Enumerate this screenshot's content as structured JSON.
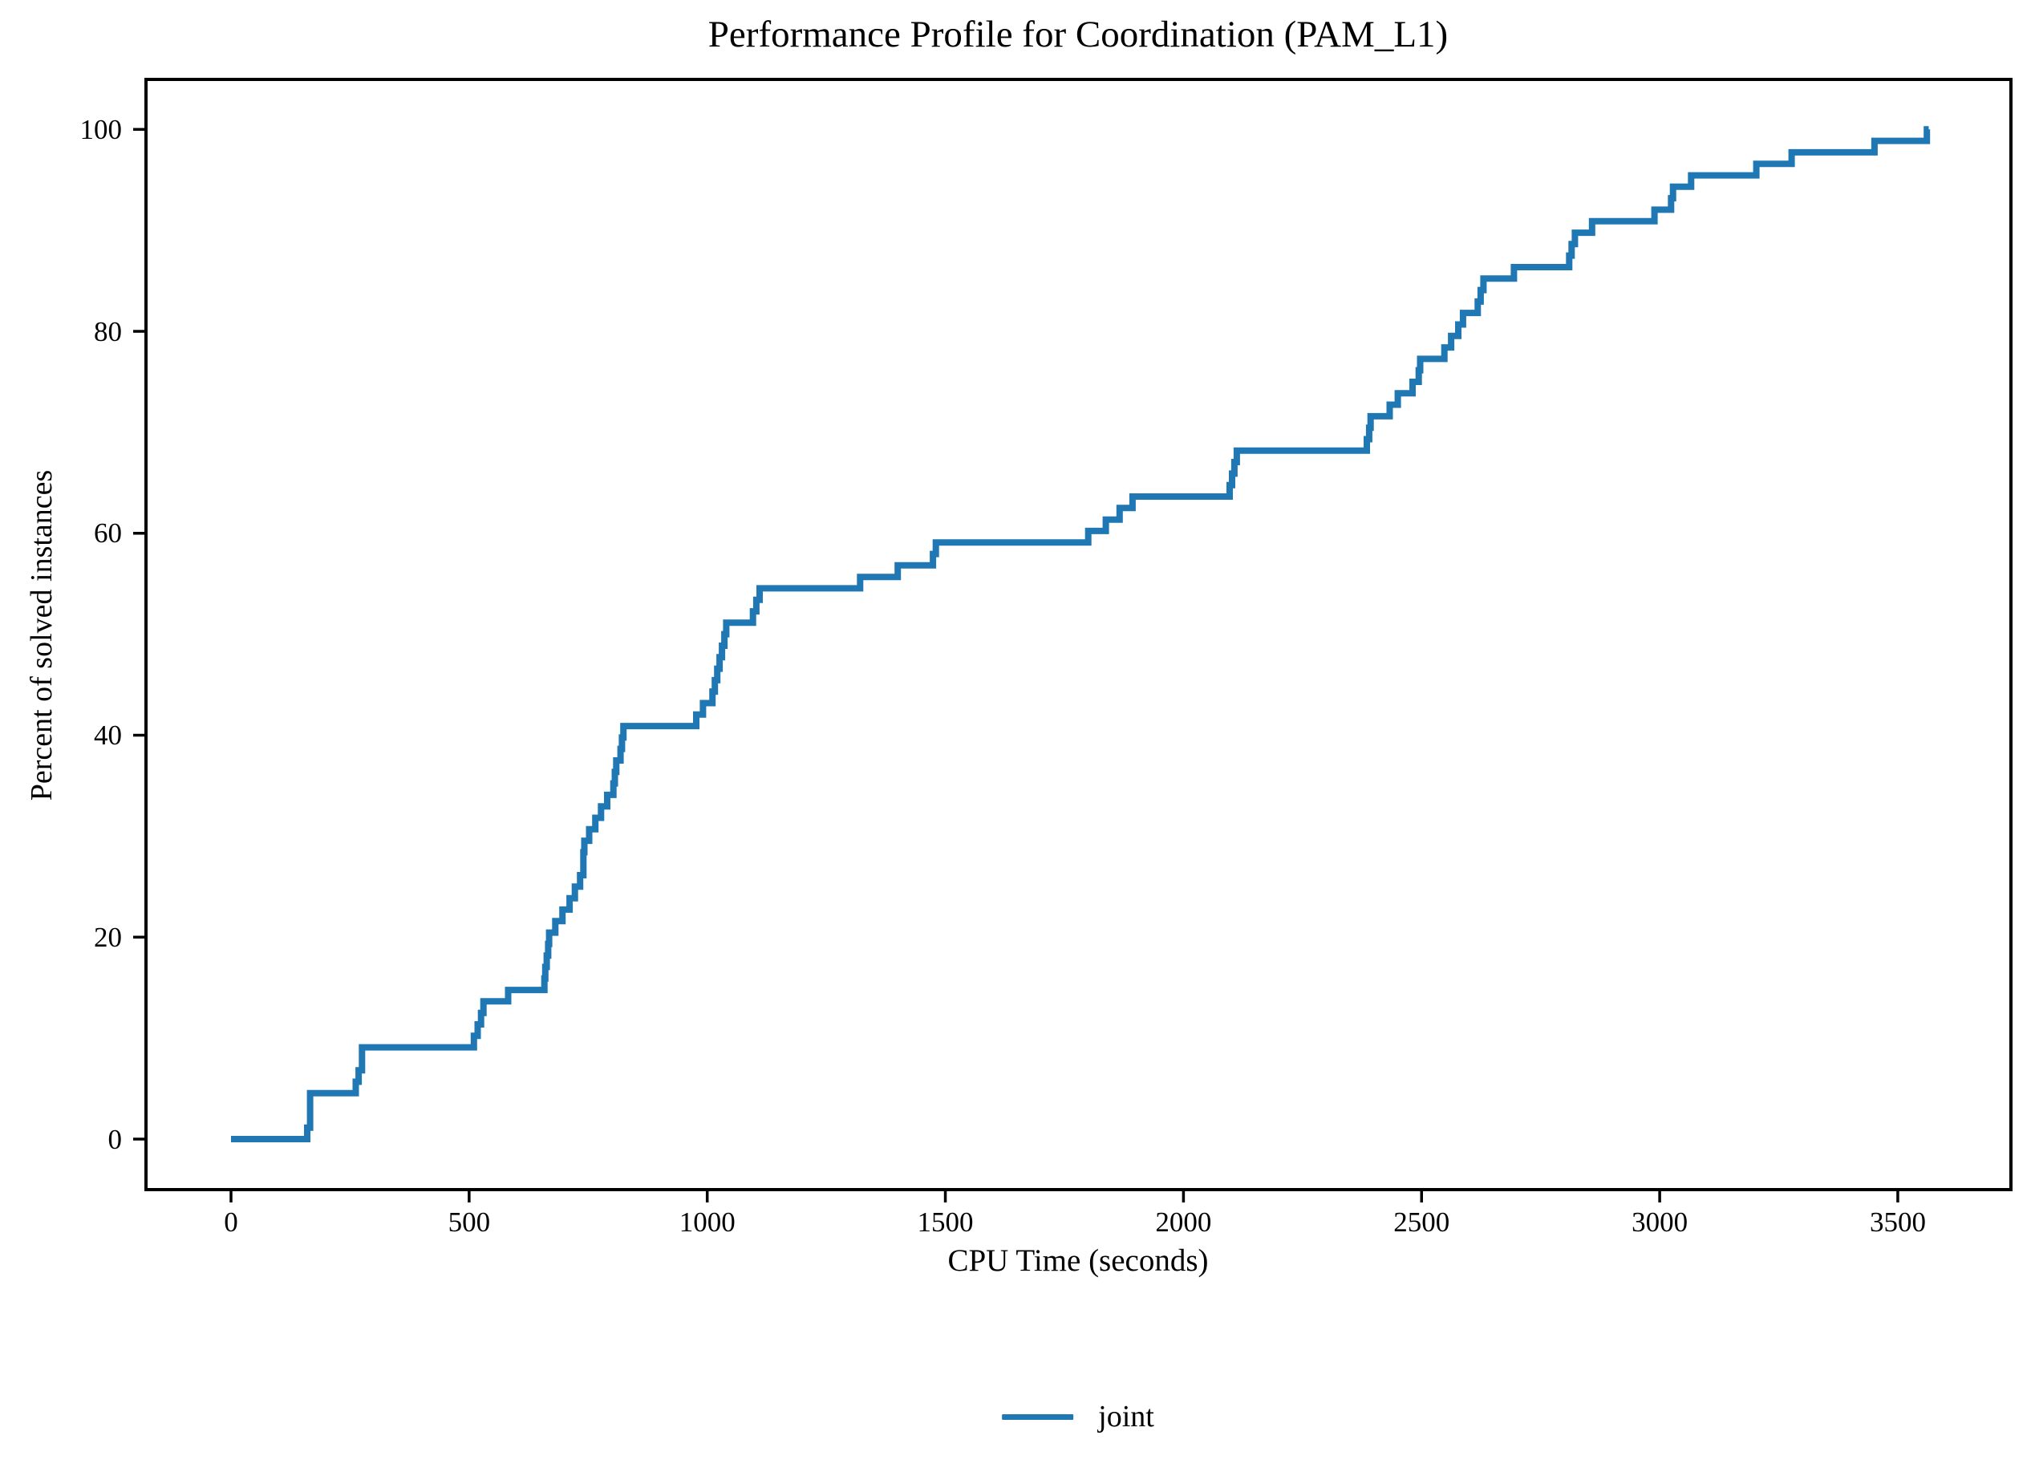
{
  "chart_data": {
    "type": "line",
    "subtype": "step-post",
    "title": "Performance Profile for Coordination (PAM_L1)",
    "xlabel": "CPU Time (seconds)",
    "ylabel": "Percent of solved instances",
    "x_ticks": [
      0,
      500,
      1000,
      1500,
      2000,
      2500,
      3000,
      3500
    ],
    "y_ticks": [
      0,
      20,
      40,
      60,
      80,
      100
    ],
    "xlim": [
      -178,
      3742
    ],
    "ylim": [
      -5,
      105
    ],
    "grid": false,
    "legend_position": "bottom-center",
    "axis_color": "#000000",
    "series": [
      {
        "name": "joint",
        "color": "#1f77b4",
        "end_t": 3565,
        "points": [
          [
            0,
            0
          ],
          [
            160,
            1.14
          ],
          [
            166,
            4.55
          ],
          [
            262,
            5.68
          ],
          [
            268,
            6.82
          ],
          [
            275,
            9.09
          ],
          [
            510,
            10.23
          ],
          [
            518,
            11.36
          ],
          [
            525,
            12.5
          ],
          [
            530,
            13.64
          ],
          [
            582,
            14.77
          ],
          [
            658,
            15.91
          ],
          [
            660,
            17.05
          ],
          [
            663,
            18.18
          ],
          [
            666,
            19.32
          ],
          [
            668,
            20.45
          ],
          [
            681,
            21.59
          ],
          [
            696,
            22.73
          ],
          [
            711,
            23.86
          ],
          [
            722,
            25.0
          ],
          [
            733,
            26.14
          ],
          [
            740,
            28.41
          ],
          [
            742,
            29.55
          ],
          [
            752,
            30.68
          ],
          [
            765,
            31.82
          ],
          [
            777,
            32.95
          ],
          [
            790,
            34.09
          ],
          [
            803,
            35.23
          ],
          [
            806,
            36.36
          ],
          [
            809,
            37.5
          ],
          [
            818,
            38.64
          ],
          [
            821,
            39.77
          ],
          [
            824,
            40.91
          ],
          [
            977,
            42.05
          ],
          [
            991,
            43.18
          ],
          [
            1011,
            44.32
          ],
          [
            1016,
            45.45
          ],
          [
            1021,
            46.59
          ],
          [
            1026,
            47.73
          ],
          [
            1031,
            48.86
          ],
          [
            1036,
            50.0
          ],
          [
            1040,
            51.14
          ],
          [
            1096,
            52.27
          ],
          [
            1103,
            53.41
          ],
          [
            1110,
            54.55
          ],
          [
            1321,
            55.68
          ],
          [
            1400,
            56.82
          ],
          [
            1474,
            57.95
          ],
          [
            1480,
            59.09
          ],
          [
            1800,
            60.23
          ],
          [
            1837,
            61.36
          ],
          [
            1866,
            62.5
          ],
          [
            1893,
            63.64
          ],
          [
            2097,
            64.77
          ],
          [
            2102,
            65.91
          ],
          [
            2107,
            67.05
          ],
          [
            2112,
            68.18
          ],
          [
            2385,
            69.32
          ],
          [
            2390,
            70.45
          ],
          [
            2393,
            71.59
          ],
          [
            2433,
            72.73
          ],
          [
            2450,
            73.86
          ],
          [
            2481,
            75.0
          ],
          [
            2494,
            76.14
          ],
          [
            2497,
            77.27
          ],
          [
            2548,
            78.41
          ],
          [
            2562,
            79.55
          ],
          [
            2577,
            80.68
          ],
          [
            2587,
            81.82
          ],
          [
            2618,
            82.95
          ],
          [
            2624,
            84.09
          ],
          [
            2630,
            85.23
          ],
          [
            2694,
            86.36
          ],
          [
            2810,
            87.5
          ],
          [
            2815,
            88.64
          ],
          [
            2822,
            89.77
          ],
          [
            2858,
            90.91
          ],
          [
            2989,
            92.05
          ],
          [
            3024,
            93.18
          ],
          [
            3028,
            94.32
          ],
          [
            3066,
            95.45
          ],
          [
            3203,
            96.59
          ],
          [
            3277,
            97.73
          ],
          [
            3451,
            98.86
          ],
          [
            3561,
            100.0
          ]
        ]
      }
    ]
  },
  "legend": {
    "entries": [
      {
        "label": "joint",
        "color": "#1f77b4"
      }
    ]
  }
}
